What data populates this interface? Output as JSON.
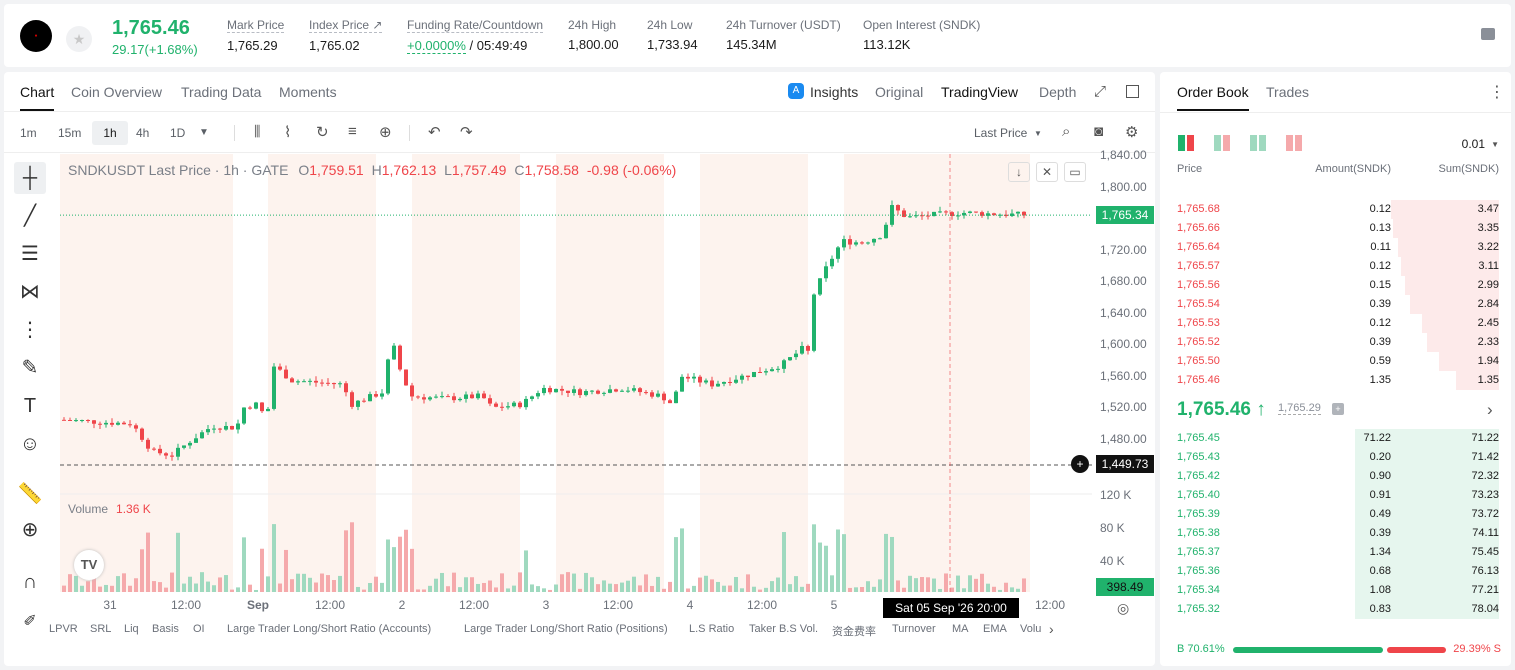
{
  "header": {
    "price": "1,765.46",
    "change": "29.17(+1.68%)",
    "stats": [
      {
        "label": "Mark Price",
        "value": "1,765.29"
      },
      {
        "label": "Index Price ↗",
        "value": "1,765.02"
      },
      {
        "label": "Funding Rate/Countdown",
        "value_green": "+0.0000%",
        "value": " / 05:49:49"
      },
      {
        "label": "24h High",
        "value": "1,800.00"
      },
      {
        "label": "24h Low",
        "value": "1,733.94"
      },
      {
        "label": "24h Turnover (USDT)",
        "value": "145.34M"
      },
      {
        "label": "Open Interest (SNDK)",
        "value": "113.12K"
      }
    ]
  },
  "chart_tabs": {
    "left": [
      "Chart",
      "Coin Overview",
      "Trading Data",
      "Moments"
    ],
    "right": [
      "Insights",
      "Original",
      "TradingView",
      "Depth"
    ]
  },
  "toolbar": {
    "intervals": [
      "1m",
      "15m",
      "1h",
      "4h",
      "1D"
    ],
    "price_type": "Last Price"
  },
  "chart_header": {
    "symbol": "SNDKUSDT Last Price · 1h · GATE",
    "o": "1,759.51",
    "h": "1,762.13",
    "l": "1,757.49",
    "c": "1,758.58",
    "chg": "-0.98 (-0.06%)"
  },
  "volume": {
    "label": "Volume",
    "value": "1.36 K",
    "current": "398.49"
  },
  "price_tags": {
    "last": "1,765.34",
    "cursor": "1,449.73"
  },
  "time_tip": "Sat 05 Sep '26   20:00",
  "chart_data": {
    "type": "candlestick",
    "y_ticks": [
      "1,840.00",
      "1,800.00",
      "1,760.00",
      "1,720.00",
      "1,680.00",
      "1,640.00",
      "1,600.00",
      "1,560.00",
      "1,520.00",
      "1,480.00"
    ],
    "vol_ticks": [
      "120 K",
      "80 K",
      "40 K"
    ],
    "x_ticks": [
      "31",
      "12:00",
      "Sep",
      "12:00",
      "2",
      "12:00",
      "3",
      "12:00",
      "4",
      "12:00",
      "5",
      "12:00"
    ],
    "ylim": [
      1440,
      1845
    ]
  },
  "bottom_indicators": [
    "LPVR",
    "SRL",
    "Liq",
    "Basis",
    "OI",
    "Large Trader Long/Short Ratio (Accounts)",
    "Large Trader Long/Short Ratio (Positions)",
    "L.S Ratio",
    "Taker B.S Vol.",
    "资金费率",
    "Turnover",
    "MA",
    "EMA",
    "Volu"
  ],
  "orderbook": {
    "tabs": [
      "Order Book",
      "Trades"
    ],
    "precision": "0.01",
    "columns": [
      "Price",
      "Amount(SNDK)",
      "Sum(SNDK)"
    ],
    "asks": [
      {
        "price": "1,765.68",
        "amount": "0.12",
        "sum": "3.47",
        "depth": 0.45
      },
      {
        "price": "1,765.66",
        "amount": "0.13",
        "sum": "3.35",
        "depth": 0.44
      },
      {
        "price": "1,765.64",
        "amount": "0.11",
        "sum": "3.22",
        "depth": 0.42
      },
      {
        "price": "1,765.57",
        "amount": "0.12",
        "sum": "3.11",
        "depth": 0.41
      },
      {
        "price": "1,765.56",
        "amount": "0.15",
        "sum": "2.99",
        "depth": 0.39
      },
      {
        "price": "1,765.54",
        "amount": "0.39",
        "sum": "2.84",
        "depth": 0.37
      },
      {
        "price": "1,765.53",
        "amount": "0.12",
        "sum": "2.45",
        "depth": 0.32
      },
      {
        "price": "1,765.52",
        "amount": "0.39",
        "sum": "2.33",
        "depth": 0.3
      },
      {
        "price": "1,765.50",
        "amount": "0.59",
        "sum": "1.94",
        "depth": 0.25
      },
      {
        "price": "1,765.46",
        "amount": "1.35",
        "sum": "1.35",
        "depth": 0.18
      }
    ],
    "mid_price": "1,765.46",
    "mid_mark": "1,765.29",
    "bids": [
      {
        "price": "1,765.45",
        "amount": "71.22",
        "sum": "71.22",
        "depth": 0.6
      },
      {
        "price": "1,765.43",
        "amount": "0.20",
        "sum": "71.42",
        "depth": 0.6
      },
      {
        "price": "1,765.42",
        "amount": "0.90",
        "sum": "72.32",
        "depth": 0.6
      },
      {
        "price": "1,765.40",
        "amount": "0.91",
        "sum": "73.23",
        "depth": 0.6
      },
      {
        "price": "1,765.39",
        "amount": "0.49",
        "sum": "73.72",
        "depth": 0.6
      },
      {
        "price": "1,765.38",
        "amount": "0.39",
        "sum": "74.11",
        "depth": 0.6
      },
      {
        "price": "1,765.37",
        "amount": "1.34",
        "sum": "75.45",
        "depth": 0.6
      },
      {
        "price": "1,765.36",
        "amount": "0.68",
        "sum": "76.13",
        "depth": 0.6
      },
      {
        "price": "1,765.34",
        "amount": "1.08",
        "sum": "77.21",
        "depth": 0.6
      },
      {
        "price": "1,765.32",
        "amount": "0.83",
        "sum": "78.04",
        "depth": 0.6
      }
    ],
    "buy_ratio": "B 70.61%",
    "sell_ratio": "29.39% S",
    "buy_fraction": 0.7061
  }
}
